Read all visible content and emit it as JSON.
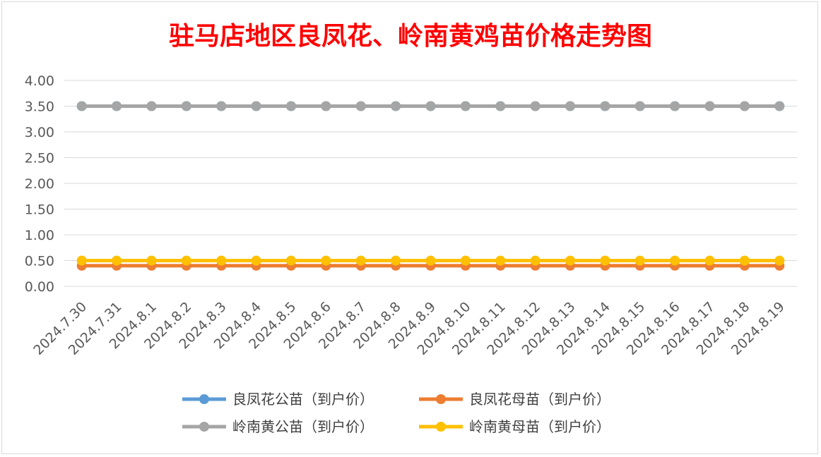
{
  "chart_data": {
    "type": "line",
    "title": "驻马店地区良凤花、岭南黄鸡苗价格走势图",
    "title_color": "#ff0000",
    "xlabel": "",
    "ylabel": "",
    "categories": [
      "2024.7.30",
      "2024.7.31",
      "2024.8.1",
      "2024.8.2",
      "2024.8.3",
      "2024.8.4",
      "2024.8.5",
      "2024.8.6",
      "2024.8.7",
      "2024.8.8",
      "2024.8.9",
      "2024.8.10",
      "2024.8.11",
      "2024.8.12",
      "2024.8.13",
      "2024.8.14",
      "2024.8.15",
      "2024.8.16",
      "2024.8.17",
      "2024.8.18",
      "2024.8.19"
    ],
    "ylim": [
      0,
      4
    ],
    "y_ticks": [
      "0.00",
      "0.50",
      "1.00",
      "1.50",
      "2.00",
      "2.50",
      "3.00",
      "3.50",
      "4.00"
    ],
    "grid": true,
    "legend_position": "bottom",
    "series": [
      {
        "name": "良凤花公苗（到户价）",
        "color": "#5b9bd5",
        "values": [
          3.5,
          3.5,
          3.5,
          3.5,
          3.5,
          3.5,
          3.5,
          3.5,
          3.5,
          3.5,
          3.5,
          3.5,
          3.5,
          3.5,
          3.5,
          3.5,
          3.5,
          3.5,
          3.5,
          3.5,
          3.5
        ]
      },
      {
        "name": "良凤花母苗（到户价）",
        "color": "#ed7d31",
        "values": [
          0.4,
          0.4,
          0.4,
          0.4,
          0.4,
          0.4,
          0.4,
          0.4,
          0.4,
          0.4,
          0.4,
          0.4,
          0.4,
          0.4,
          0.4,
          0.4,
          0.4,
          0.4,
          0.4,
          0.4,
          0.4
        ]
      },
      {
        "name": "岭南黄公苗（到户价）",
        "color": "#a5a5a5",
        "values": [
          3.5,
          3.5,
          3.5,
          3.5,
          3.5,
          3.5,
          3.5,
          3.5,
          3.5,
          3.5,
          3.5,
          3.5,
          3.5,
          3.5,
          3.5,
          3.5,
          3.5,
          3.5,
          3.5,
          3.5,
          3.5
        ]
      },
      {
        "name": "岭南黄母苗（到户价）",
        "color": "#ffc000",
        "values": [
          0.5,
          0.5,
          0.5,
          0.5,
          0.5,
          0.5,
          0.5,
          0.5,
          0.5,
          0.5,
          0.5,
          0.5,
          0.5,
          0.5,
          0.5,
          0.5,
          0.5,
          0.5,
          0.5,
          0.5,
          0.5
        ]
      }
    ]
  }
}
